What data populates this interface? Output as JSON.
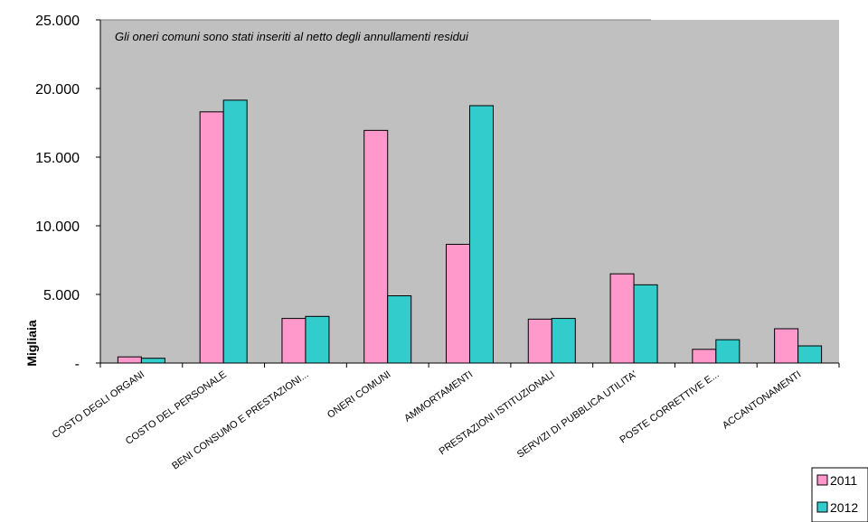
{
  "chart_data": {
    "type": "bar",
    "annotation": "Gli oneri comuni sono stati inseriti al netto degli annullamenti residui",
    "ylabel": "Migliaia",
    "xlabel": "",
    "ylim": [
      0,
      25000
    ],
    "yticks": [
      0,
      5000,
      10000,
      15000,
      20000,
      25000
    ],
    "ytick_labels": [
      "-",
      "5.000",
      "10.000",
      "15.000",
      "20.000",
      "25.000"
    ],
    "grid": false,
    "legend_position": "bottom-right",
    "categories": [
      "COSTO DEGLI ORGANI",
      "COSTO DEL PERSONALE",
      "BENI CONSUMO E PRESTAZIONI...",
      "ONERI COMUNI",
      "AMMORTAMENTI",
      "PRESTAZIONI ISTITUZIONALI",
      "SERVIZI DI PUBBLICA UTILITA'",
      "POSTE CORRETTIVE E...",
      "ACCANTONAMENTI"
    ],
    "series": [
      {
        "name": "2011",
        "color": "#ff99cc",
        "values": [
          450,
          18300,
          3250,
          16950,
          8650,
          3200,
          6500,
          1000,
          2500
        ]
      },
      {
        "name": "2012",
        "color": "#33cccc",
        "values": [
          350,
          19150,
          3400,
          4900,
          18750,
          3250,
          5700,
          1700,
          1250
        ]
      }
    ],
    "plot_background": "#c0c0c0"
  }
}
